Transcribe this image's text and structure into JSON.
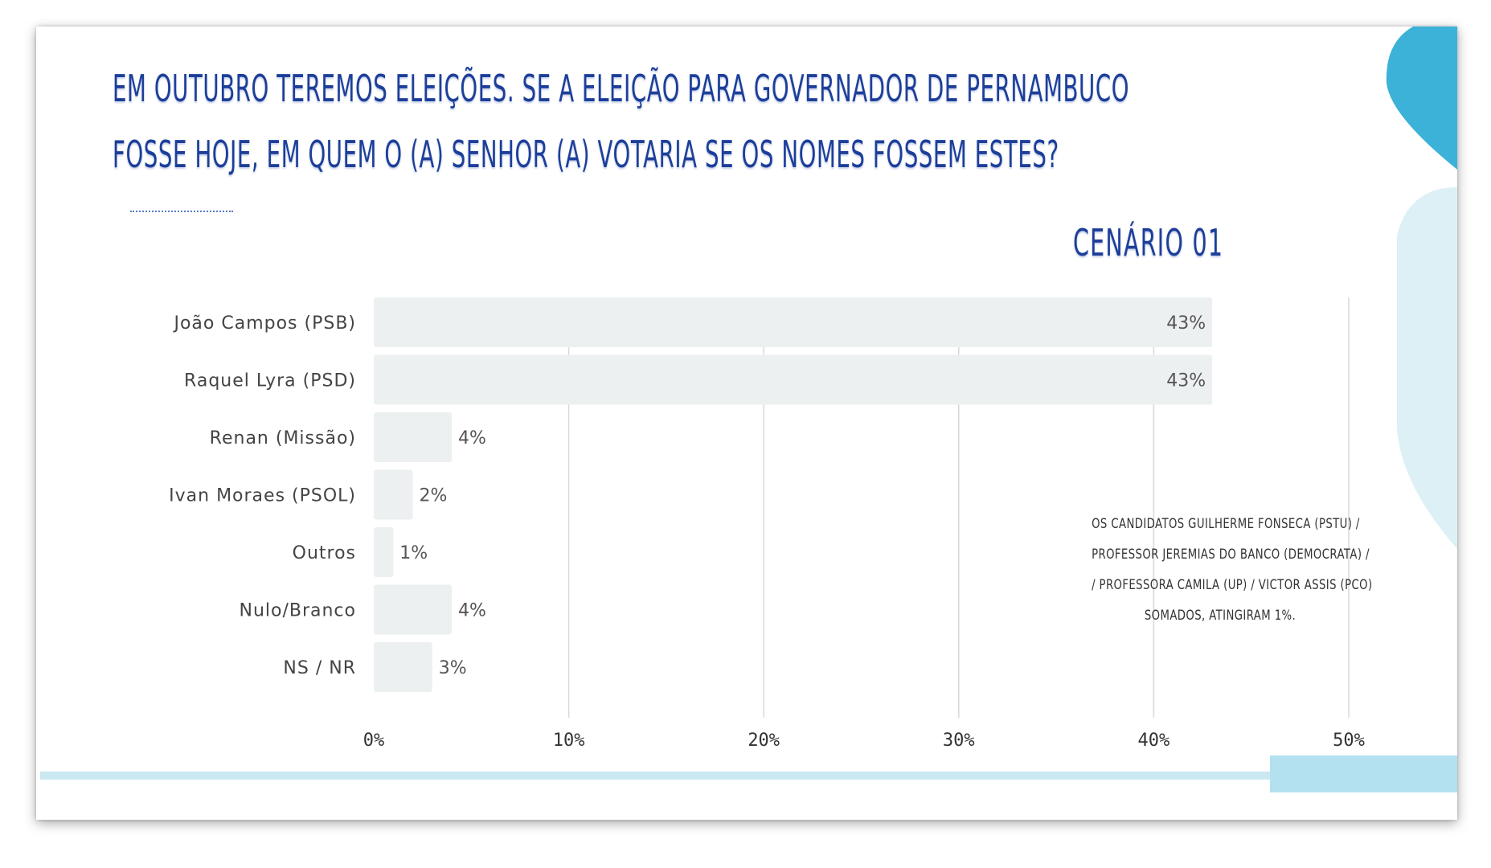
{
  "title": {
    "line1": "EM OUTUBRO TEREMOS ELEIÇÕES. SE A ELEIÇÃO PARA GOVERNADOR DE PERNAMBUCO",
    "line2": "FOSSE HOJE, EM QUEM O (A) SENHOR (A) VOTARIA SE OS NOMES FOSSEM ESTES?"
  },
  "subtitle": "CENÁRIO 01",
  "footnote": {
    "lines": [
      "OS CANDIDATOS GUILHERME FONSECA (PSTU) /",
      "PROFESSOR JEREMIAS DO BANCO (DEMOCRATA) /",
      "/ PROFESSORA CAMILA (UP) / VICTOR ASSIS (PCO)",
      "SOMADOS, ATINGIRAM 1%."
    ]
  },
  "colors": {
    "title": "#1d3f9a",
    "bar": "#ecf0f0",
    "grid": "#d8d8d8",
    "accent_dark": "#3cb2d8",
    "accent_light": "#d9eff5"
  },
  "chart_data": {
    "type": "bar",
    "orientation": "horizontal",
    "categories": [
      "João Campos (PSB)",
      "Raquel Lyra (PSD)",
      "Renan (Missão)",
      "Ivan Moraes (PSOL)",
      "Outros",
      "Nulo/Branco",
      "NS / NR"
    ],
    "values": [
      43,
      43,
      4,
      2,
      1,
      4,
      3
    ],
    "value_labels": [
      "43%",
      "43%",
      "4%",
      "2%",
      "1%",
      "4%",
      "3%"
    ],
    "xlim": [
      0,
      50
    ],
    "xticks": [
      0,
      10,
      20,
      30,
      40,
      50
    ],
    "xtick_labels": [
      "0%",
      "10%",
      "20%",
      "30%",
      "40%",
      "50%"
    ],
    "grid": true,
    "xlabel": "",
    "ylabel": ""
  }
}
